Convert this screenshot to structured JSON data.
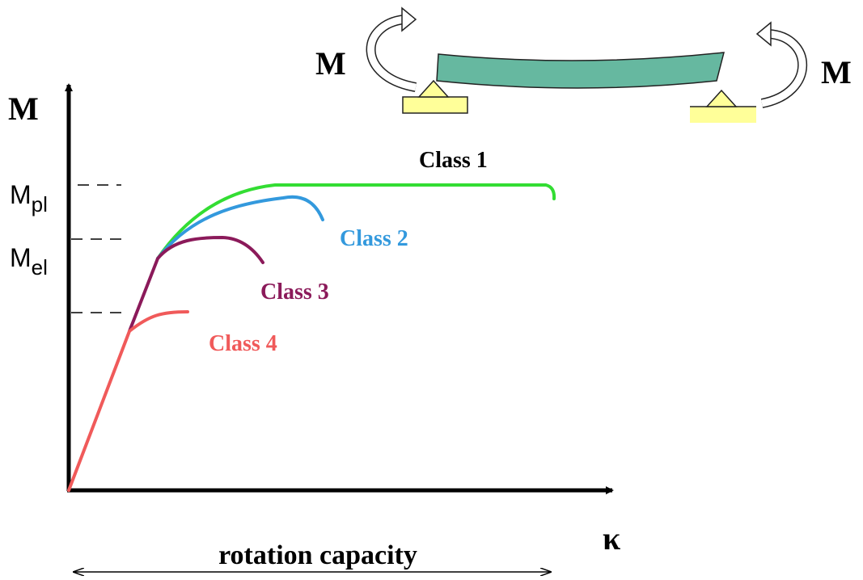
{
  "beam": {
    "left_moment": "M",
    "right_moment": "M"
  },
  "axes": {
    "y_label": "M",
    "x_label": "κ"
  },
  "levels": [
    {
      "main": "M",
      "sub": "pl"
    },
    {
      "main": "M",
      "sub": "el"
    }
  ],
  "curves": [
    "Class 1",
    "Class 2",
    "Class 3",
    "Class 4"
  ],
  "rotation": "rotation capacity"
}
